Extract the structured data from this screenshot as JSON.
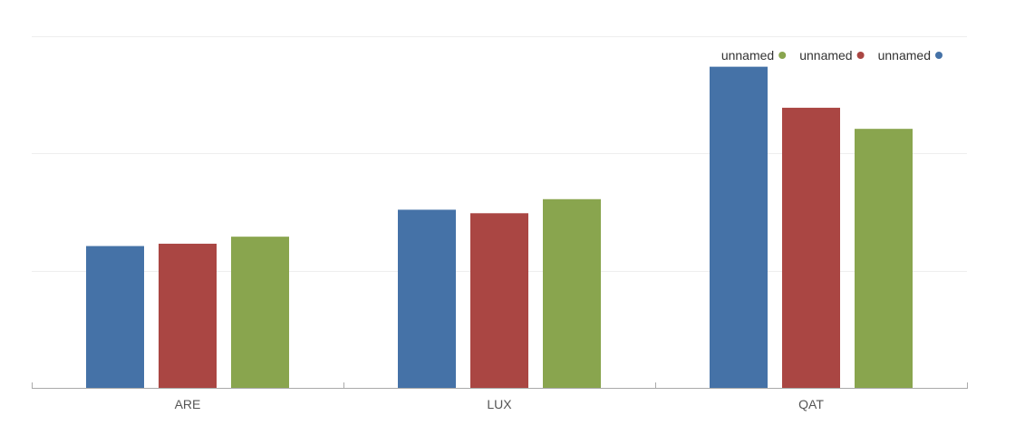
{
  "chart_data": {
    "type": "bar",
    "categories": [
      "ARE",
      "LUX",
      "QAT"
    ],
    "series": [
      {
        "name": "unnamed",
        "color": "#4572a7",
        "values": [
          12.1,
          15.2,
          27.4
        ]
      },
      {
        "name": "unnamed",
        "color": "#aa4643",
        "values": [
          12.3,
          14.9,
          23.9
        ]
      },
      {
        "name": "unnamed",
        "color": "#89a54e",
        "values": [
          12.9,
          16.1,
          22.1
        ]
      }
    ],
    "legend_order": [
      2,
      1,
      0
    ],
    "ylim": [
      0,
      30
    ],
    "y_gridlines": [
      10,
      20,
      30
    ],
    "grid": true,
    "legend_position": "top-right",
    "title": "",
    "xlabel": "",
    "ylabel": ""
  }
}
